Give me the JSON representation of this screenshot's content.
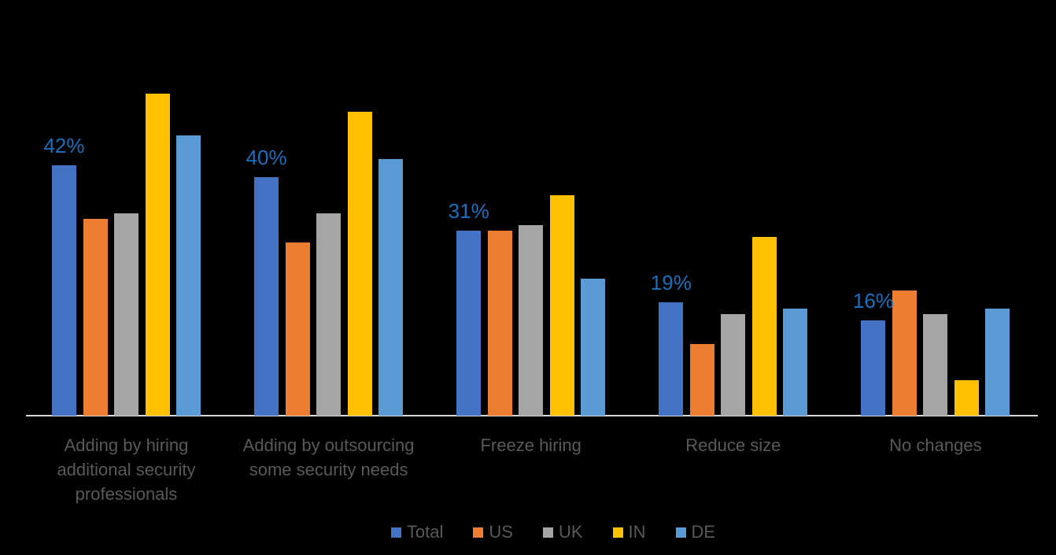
{
  "chart_data": {
    "type": "bar",
    "title": "",
    "xlabel": "",
    "ylabel": "",
    "unit": "percent",
    "categories": [
      "Adding by hiring additional security professionals",
      "Adding by outsourcing some security needs",
      "Freeze hiring",
      "Reduce size",
      "No changes"
    ],
    "series": [
      {
        "name": "Total",
        "color": "#4472C4",
        "values": [
          42,
          40,
          31,
          19,
          16
        ]
      },
      {
        "name": "US",
        "color": "#ED7D31",
        "values": [
          33,
          29,
          31,
          12,
          21
        ]
      },
      {
        "name": "UK",
        "color": "#A5A5A5",
        "values": [
          34,
          34,
          32,
          17,
          17
        ]
      },
      {
        "name": "IN",
        "color": "#FFC000",
        "values": [
          54,
          51,
          37,
          30,
          6
        ]
      },
      {
        "name": "DE",
        "color": "#5B9BD5",
        "values": [
          47,
          43,
          23,
          18,
          18
        ]
      }
    ],
    "data_labels": {
      "series": "Total",
      "labels": [
        "42%",
        "40%",
        "31%",
        "19%",
        "16%"
      ],
      "color": "#1B70BE"
    },
    "legend": {
      "position": "bottom",
      "entries": [
        "Total",
        "US",
        "UK",
        "IN",
        "DE"
      ]
    },
    "y_axis": {
      "visible": false,
      "min": 0,
      "max_estimated": 60
    },
    "grid": false,
    "axis_line_color": "#D9D9D9",
    "category_label_color": "#595959",
    "background_color": "#000000"
  }
}
